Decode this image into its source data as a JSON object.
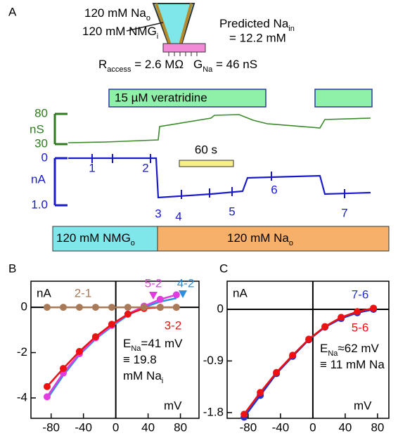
{
  "panel_a": {
    "label": "A",
    "bath": [
      {
        "t": "120 mM Na"
      },
      {
        "sub": "o"
      }
    ],
    "pipette": [
      {
        "t": "120 mM NMG"
      },
      {
        "sub": "i"
      }
    ],
    "predicted": [
      {
        "t": "Predicted Na"
      },
      {
        "sub": "in"
      }
    ],
    "predicted_value": "= 12.2 mM",
    "access": [
      {
        "t": "R"
      },
      {
        "sub": "access"
      },
      {
        "t": " = 2.6 MΩ"
      }
    ],
    "conductance_note": [
      {
        "t": "G"
      },
      {
        "sub": "Na"
      },
      {
        "t": " = 46 nS"
      }
    ],
    "drug": "15 µM veratridine",
    "conductance": {
      "unit": "nS",
      "ticks": [
        80,
        30
      ]
    },
    "current": {
      "unit": "nA",
      "ticks": [
        0,
        {
          "value": 1,
          "label": "1.0"
        }
      ]
    },
    "time_scale": "60 s",
    "points": [
      "1",
      "2",
      "3",
      "4",
      "5",
      "6",
      "7"
    ],
    "solutions": [
      [
        {
          "t": "120 mM NMG"
        },
        {
          "sub": "o"
        }
      ],
      [
        {
          "t": "120 mM Na"
        },
        {
          "sub": "o"
        }
      ]
    ]
  },
  "chart_data": [
    {
      "type": "line",
      "label": "B",
      "y_label": "nA",
      "x_label": "mV",
      "xlim": [
        -105,
        103
      ],
      "ylim": [
        -4.9,
        1.15
      ],
      "xticks": [
        -80,
        -40,
        0,
        40,
        80
      ],
      "yticks": [
        0,
        -2,
        -4
      ],
      "x": [
        -85,
        -65,
        -45,
        -25,
        -5,
        15,
        35,
        55,
        75
      ],
      "series": [
        {
          "name": "4-2",
          "color": "#2b8fe0",
          "markers": false,
          "values": [
            -4.05,
            -3.0,
            -2.1,
            -1.4,
            -0.85,
            -0.35,
            0,
            0.25,
            0.4
          ]
        },
        {
          "name": "5-2",
          "color": "#e23ce0",
          "markers": true,
          "values": [
            -3.95,
            -2.9,
            -2.05,
            -1.35,
            -0.8,
            -0.3,
            0.05,
            0.35,
            0.55
          ]
        },
        {
          "name": "3-2",
          "color": "#ee1111",
          "markers": true,
          "values": [
            -3.5,
            -2.7,
            -1.95,
            -1.3,
            -0.75,
            -0.3,
            -0.05,
            0,
            0
          ]
        },
        {
          "name": "2-1",
          "color": "#a87a58",
          "markers": true,
          "values": [
            0,
            0,
            0,
            0,
            0,
            0,
            0,
            0,
            0
          ]
        }
      ],
      "annotation": [
        [
          {
            "t": "E"
          },
          {
            "sub": "Na"
          },
          {
            "t": "=41 mV"
          }
        ],
        [
          {
            "t": "≡ 19.8"
          }
        ],
        [
          {
            "t": "mM Na"
          },
          {
            "sub": "i"
          }
        ]
      ]
    },
    {
      "type": "line",
      "label": "C",
      "y_label": "nA",
      "x_label": "mV",
      "xlim": [
        -106,
        94
      ],
      "ylim": [
        -1.9,
        0.49
      ],
      "xticks": [
        -80,
        -40,
        0,
        40,
        80
      ],
      "yticks": [
        0,
        -0.9,
        -1.8
      ],
      "x": [
        -85,
        -65,
        -45,
        -25,
        -5,
        15,
        35,
        55,
        75
      ],
      "series": [
        {
          "name": "7-6",
          "color": "#2233cc",
          "markers": true,
          "values": [
            -1.88,
            -1.5,
            -1.12,
            -0.82,
            -0.53,
            -0.31,
            -0.16,
            -0.06,
            0
          ]
        },
        {
          "name": "5-6",
          "color": "#ee1111",
          "markers": true,
          "values": [
            -1.83,
            -1.45,
            -1.1,
            -0.8,
            -0.52,
            -0.3,
            -0.14,
            -0.04,
            0.02
          ]
        }
      ],
      "annotation": [
        [
          {
            "t": "E"
          },
          {
            "sub": "Na"
          },
          {
            "t": "≈62 mV"
          }
        ],
        [
          {
            "t": "≡ 11 mM Na"
          }
        ]
      ]
    }
  ]
}
